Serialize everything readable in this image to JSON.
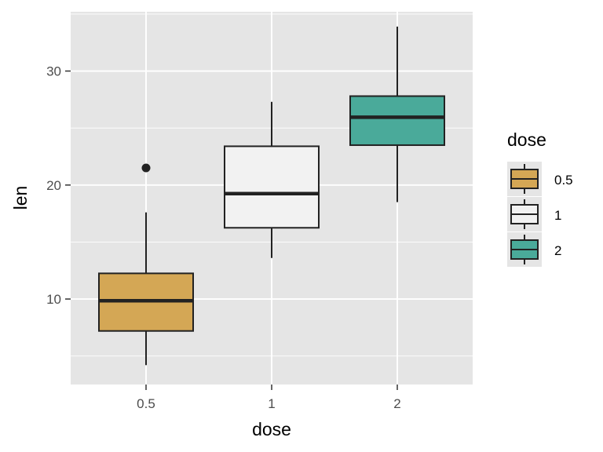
{
  "chart_data": {
    "type": "boxplot",
    "title": "",
    "xlabel": "dose",
    "ylabel": "len",
    "categories": [
      "0.5",
      "1",
      "2"
    ],
    "ylim": [
      2.5,
      35.2
    ],
    "yticks": [
      10,
      20,
      30
    ],
    "grid": true,
    "legend_position": "right",
    "legend_title": "dose",
    "legend_labels": [
      "0.5",
      "1",
      "2"
    ],
    "boxes": [
      {
        "category": "0.5",
        "whisker_low": 4.2,
        "q1": 7.2,
        "median": 9.85,
        "q3": 12.25,
        "whisker_high": 17.6,
        "outliers": [
          21.5
        ],
        "fill": "#D4A755"
      },
      {
        "category": "1",
        "whisker_low": 13.6,
        "q1": 16.25,
        "median": 19.25,
        "q3": 23.4,
        "whisker_high": 27.3,
        "outliers": [],
        "fill": "#F2F2F2"
      },
      {
        "category": "2",
        "whisker_low": 18.5,
        "q1": 23.5,
        "median": 25.95,
        "q3": 27.8,
        "whisker_high": 33.9,
        "outliers": [],
        "fill": "#4AAA9A"
      }
    ],
    "colors": {
      "panel": "#E5E5E5",
      "grid": "#FFFFFF",
      "box_stroke": "#222222"
    }
  }
}
